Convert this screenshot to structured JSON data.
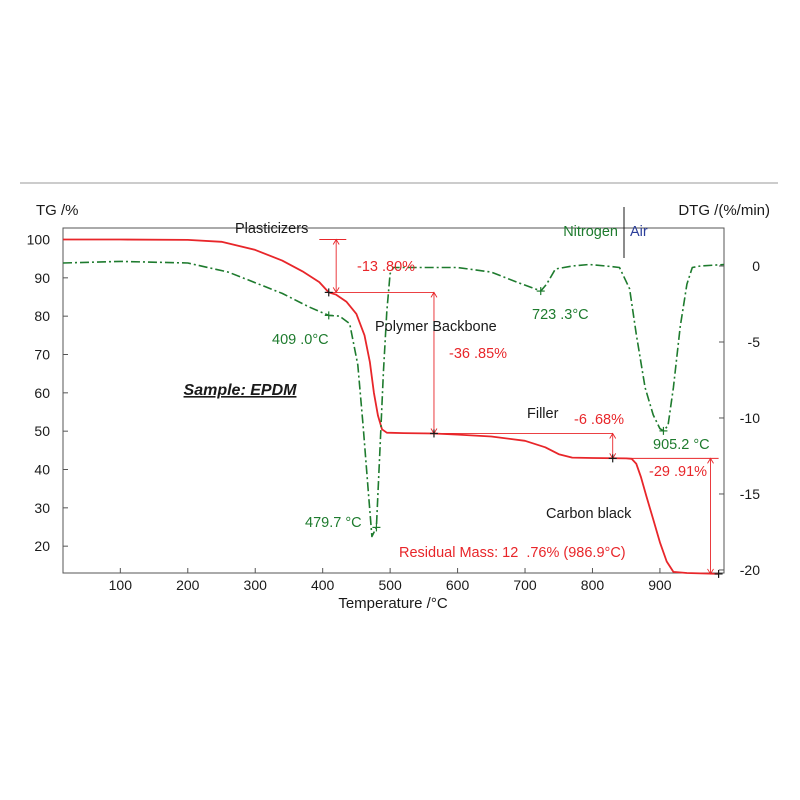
{
  "chart_data": {
    "type": "line",
    "xlabel": "Temperature /°C",
    "ylabel_left": "TG /%",
    "ylabel_right": "DTG /(%/min)",
    "xlim": [
      15,
      995
    ],
    "ylim_left": [
      13,
      103
    ],
    "ylim_right": [
      -20.2,
      2.5
    ],
    "x_ticks": [
      100,
      200,
      300,
      400,
      500,
      600,
      700,
      800,
      900
    ],
    "y_ticks_left": [
      20,
      30,
      40,
      50,
      60,
      70,
      80,
      90,
      100
    ],
    "y_ticks_right": [
      0,
      -5,
      -10,
      -15,
      -20
    ],
    "grid": false,
    "colors": {
      "tg": "#e8262a",
      "dtg": "#1e7b2e",
      "air": "#2b3e9a",
      "text": "#1a1a1a"
    },
    "series": [
      {
        "axis": "left",
        "color": "#e8262a",
        "style": "solid",
        "points": [
          [
            15,
            100
          ],
          [
            100,
            100
          ],
          [
            200,
            99.9
          ],
          [
            250,
            99.4
          ],
          [
            300,
            97.3
          ],
          [
            340,
            94.5
          ],
          [
            370,
            91.7
          ],
          [
            395,
            88.9
          ],
          [
            409,
            86.2
          ],
          [
            420,
            85.6
          ],
          [
            435,
            83.8
          ],
          [
            450,
            80.6
          ],
          [
            462,
            75.0
          ],
          [
            470,
            68.0
          ],
          [
            476,
            60.0
          ],
          [
            482,
            54.0
          ],
          [
            488,
            50.5
          ],
          [
            495,
            49.6
          ],
          [
            520,
            49.5
          ],
          [
            565,
            49.4
          ],
          [
            600,
            49.1
          ],
          [
            650,
            48.6
          ],
          [
            700,
            47.5
          ],
          [
            730,
            45.8
          ],
          [
            750,
            44.0
          ],
          [
            770,
            43.1
          ],
          [
            800,
            43.0
          ],
          [
            850,
            42.9
          ],
          [
            858,
            42.8
          ],
          [
            865,
            41.5
          ],
          [
            872,
            38.0
          ],
          [
            880,
            33.0
          ],
          [
            890,
            27.0
          ],
          [
            900,
            21.0
          ],
          [
            910,
            16.0
          ],
          [
            920,
            13.3
          ],
          [
            940,
            13.0
          ],
          [
            987,
            12.76
          ]
        ]
      },
      {
        "axis": "right",
        "color": "#1e7b2e",
        "style": "dashdot",
        "points": [
          [
            15,
            0.2
          ],
          [
            100,
            0.3
          ],
          [
            200,
            0.2
          ],
          [
            260,
            -0.4
          ],
          [
            300,
            -1.1
          ],
          [
            340,
            -1.8
          ],
          [
            380,
            -2.7
          ],
          [
            409,
            -3.25
          ],
          [
            425,
            -3.3
          ],
          [
            440,
            -3.8
          ],
          [
            452,
            -6.5
          ],
          [
            460,
            -10.5
          ],
          [
            468,
            -15.0
          ],
          [
            473,
            -17.8
          ],
          [
            479.7,
            -17.2
          ],
          [
            485,
            -12.0
          ],
          [
            490,
            -7.0
          ],
          [
            495,
            -3.0
          ],
          [
            500,
            -0.5
          ],
          [
            505,
            -0.1
          ],
          [
            550,
            -0.1
          ],
          [
            600,
            -0.1
          ],
          [
            650,
            -0.4
          ],
          [
            690,
            -1.1
          ],
          [
            715,
            -1.5
          ],
          [
            723.3,
            -1.65
          ],
          [
            732,
            -1.2
          ],
          [
            745,
            -0.2
          ],
          [
            770,
            0.0
          ],
          [
            795,
            0.1
          ],
          [
            820,
            0.0
          ],
          [
            840,
            -0.1
          ],
          [
            855,
            -1.5
          ],
          [
            865,
            -4.5
          ],
          [
            878,
            -8.0
          ],
          [
            890,
            -9.8
          ],
          [
            900,
            -10.7
          ],
          [
            905.2,
            -10.85
          ],
          [
            912,
            -10.5
          ],
          [
            920,
            -8.0
          ],
          [
            930,
            -4.0
          ],
          [
            940,
            -1.2
          ],
          [
            948,
            -0.1
          ],
          [
            960,
            0.0
          ],
          [
            995,
            0.1
          ]
        ]
      }
    ],
    "annotations": {
      "sample": "Sample: EPDM",
      "legend_nitrogen": "Nitrogen",
      "legend_air": "Air",
      "plasticizers": "Plasticizers",
      "step1_loss": "-13 .80%",
      "backbone": "Polymer Backbone",
      "step2_loss": "-36 .85%",
      "filler": "Filler",
      "step3_loss": "-6 .68%",
      "step4_loss": "-29 .91%",
      "carbon": "Carbon black",
      "residual": "Residual Mass: 12  .76% (986.9°C)",
      "peak1": "409 .0°C",
      "peak2": "479.7 °C",
      "peak3": "723 .3°C",
      "peak4": "905.2 °C"
    }
  }
}
